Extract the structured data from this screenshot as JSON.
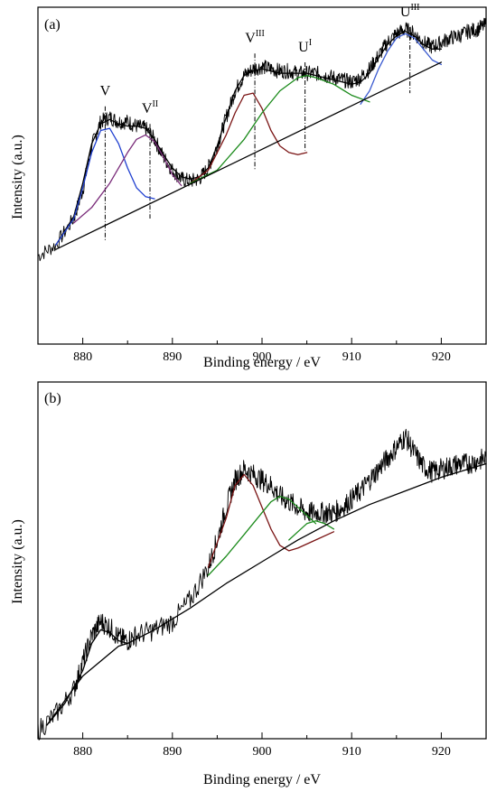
{
  "chart_data": [
    {
      "type": "line",
      "panel_label": "(a)",
      "xlabel": "Binding energy / eV",
      "ylabel": "Intensity (a.u.)",
      "xlim": [
        875,
        925
      ],
      "xticks": [
        880,
        890,
        900,
        910,
        920
      ],
      "y_tick_labels": false,
      "peak_labels": [
        {
          "base": "V",
          "sup": "",
          "x": 882.5
        },
        {
          "base": "V",
          "sup": "II",
          "x": 887.5
        },
        {
          "base": "V",
          "sup": "III",
          "x": 899.2
        },
        {
          "base": "U",
          "sup": "I",
          "x": 904.8
        },
        {
          "base": "U",
          "sup": "III",
          "x": 916.5
        }
      ],
      "series": [
        {
          "role": "experimental",
          "color": "#000000",
          "x": [
            875,
            877,
            879,
            880,
            881,
            882,
            883,
            884,
            885,
            886,
            887,
            888,
            889,
            890,
            891,
            892,
            893,
            894,
            895,
            896,
            897,
            898,
            899,
            900,
            901,
            902,
            903,
            904,
            905,
            906,
            907,
            908,
            909,
            910,
            911,
            912,
            913,
            914,
            915,
            916,
            917,
            918,
            919,
            920,
            921,
            922,
            923,
            924,
            925
          ],
          "y": [
            0.05,
            0.1,
            0.22,
            0.35,
            0.55,
            0.66,
            0.68,
            0.66,
            0.66,
            0.64,
            0.63,
            0.58,
            0.5,
            0.44,
            0.4,
            0.39,
            0.4,
            0.45,
            0.55,
            0.68,
            0.8,
            0.87,
            0.9,
            0.91,
            0.9,
            0.89,
            0.89,
            0.88,
            0.88,
            0.88,
            0.87,
            0.86,
            0.85,
            0.84,
            0.86,
            0.9,
            0.96,
            1.02,
            1.06,
            1.08,
            1.06,
            1.02,
            1.0,
            1.02,
            1.04,
            1.05,
            1.07,
            1.08,
            1.1
          ]
        },
        {
          "role": "fit-envelope",
          "color": "#000000",
          "x": [
            877,
            879,
            880,
            881,
            882,
            883,
            884,
            885,
            886,
            887,
            888,
            889,
            890,
            891,
            892,
            893,
            894,
            895,
            896,
            897,
            898,
            899,
            900,
            901,
            902,
            903,
            904,
            905,
            906,
            907,
            908,
            909,
            910,
            911,
            912,
            913,
            914,
            915,
            916,
            917,
            918,
            919,
            920
          ],
          "y": [
            0.1,
            0.23,
            0.38,
            0.56,
            0.65,
            0.67,
            0.65,
            0.64,
            0.64,
            0.63,
            0.58,
            0.51,
            0.45,
            0.41,
            0.4,
            0.41,
            0.45,
            0.55,
            0.68,
            0.8,
            0.87,
            0.89,
            0.9,
            0.89,
            0.88,
            0.88,
            0.88,
            0.88,
            0.87,
            0.86,
            0.85,
            0.84,
            0.83,
            0.84,
            0.88,
            0.95,
            1.01,
            1.05,
            1.07,
            1.05,
            1.01,
            0.99,
            0.99
          ]
        },
        {
          "role": "component V",
          "color": "#1f3fd0",
          "x": [
            877,
            879,
            880,
            881,
            882,
            883,
            884,
            885,
            886,
            887,
            888
          ],
          "y": [
            0.1,
            0.22,
            0.36,
            0.52,
            0.62,
            0.63,
            0.56,
            0.45,
            0.36,
            0.32,
            0.31
          ]
        },
        {
          "role": "component V-II",
          "color": "#7a2c7a",
          "x": [
            879,
            881,
            883,
            885,
            886,
            887,
            888,
            889,
            890,
            891
          ],
          "y": [
            0.2,
            0.27,
            0.38,
            0.52,
            0.58,
            0.6,
            0.57,
            0.5,
            0.42,
            0.37
          ]
        },
        {
          "role": "component V-III",
          "color": "#7a1414",
          "x": [
            892,
            894,
            896,
            897,
            898,
            899,
            900,
            901,
            902,
            903,
            904,
            905
          ],
          "y": [
            0.38,
            0.44,
            0.6,
            0.7,
            0.78,
            0.79,
            0.72,
            0.62,
            0.55,
            0.52,
            0.51,
            0.52
          ]
        },
        {
          "role": "component U-I",
          "color": "#1a8a1a",
          "x": [
            892,
            895,
            898,
            900,
            902,
            904,
            905,
            906,
            908,
            910,
            912
          ],
          "y": [
            0.38,
            0.44,
            0.58,
            0.7,
            0.8,
            0.86,
            0.87,
            0.86,
            0.83,
            0.78,
            0.75
          ]
        },
        {
          "role": "component U-III",
          "color": "#3a5ad0",
          "x": [
            911,
            912,
            913,
            914,
            915,
            916,
            917,
            918,
            919,
            920
          ],
          "y": [
            0.74,
            0.8,
            0.9,
            0.98,
            1.04,
            1.06,
            1.04,
            0.99,
            0.94,
            0.92
          ]
        },
        {
          "role": "baseline",
          "color": "#000000",
          "x": [
            877,
            920
          ],
          "y": [
            0.08,
            0.93
          ]
        }
      ]
    },
    {
      "type": "line",
      "panel_label": "(b)",
      "xlabel": "Binding energy / eV",
      "ylabel": "Intensity (a.u.)",
      "xlim": [
        875,
        925
      ],
      "xticks": [
        880,
        890,
        900,
        910,
        920
      ],
      "y_tick_labels": false,
      "series": [
        {
          "role": "experimental",
          "color": "#000000",
          "x": [
            875,
            877,
            879,
            880,
            881,
            882,
            883,
            884,
            885,
            886,
            888,
            890,
            892,
            894,
            895,
            896,
            897,
            898,
            899,
            900,
            901,
            902,
            903,
            904,
            905,
            906,
            907,
            908,
            909,
            910,
            911,
            912,
            913,
            914,
            915,
            916,
            917,
            918,
            919,
            920,
            921,
            922,
            923,
            924,
            925
          ],
          "y": [
            0.0,
            0.06,
            0.15,
            0.25,
            0.35,
            0.4,
            0.38,
            0.34,
            0.33,
            0.35,
            0.37,
            0.4,
            0.48,
            0.6,
            0.7,
            0.82,
            0.92,
            0.96,
            0.94,
            0.92,
            0.9,
            0.86,
            0.84,
            0.82,
            0.8,
            0.8,
            0.8,
            0.8,
            0.82,
            0.85,
            0.88,
            0.92,
            0.96,
            1.0,
            1.04,
            1.08,
            1.02,
            0.97,
            0.95,
            0.96,
            0.97,
            0.98,
            0.98,
            0.99,
            1.0
          ]
        },
        {
          "role": "fit-envelope",
          "color": "#000000",
          "x": [
            876,
            878,
            880,
            881,
            882,
            883,
            884,
            885
          ],
          "y": [
            0.02,
            0.1,
            0.22,
            0.32,
            0.37,
            0.36,
            0.33,
            0.32
          ]
        },
        {
          "role": "component 1",
          "color": "#7a1414",
          "x": [
            894,
            896,
            897,
            898,
            899,
            900,
            901,
            902,
            903,
            904,
            906,
            908
          ],
          "y": [
            0.6,
            0.78,
            0.9,
            0.94,
            0.9,
            0.82,
            0.74,
            0.68,
            0.66,
            0.67,
            0.7,
            0.73
          ]
        },
        {
          "role": "component 2",
          "color": "#1a8a1a",
          "x": [
            894,
            896,
            898,
            900,
            901,
            902,
            903,
            904,
            905,
            906
          ],
          "y": [
            0.57,
            0.64,
            0.72,
            0.8,
            0.84,
            0.86,
            0.85,
            0.82,
            0.79,
            0.76
          ]
        },
        {
          "role": "component 3",
          "color": "#1a8a1a",
          "x": [
            903,
            904,
            905,
            906,
            907,
            908
          ],
          "y": [
            0.7,
            0.73,
            0.76,
            0.77,
            0.76,
            0.74
          ]
        },
        {
          "role": "baseline",
          "color": "#000000",
          "x": [
            876,
            880,
            884,
            885,
            888,
            892,
            896,
            900,
            904,
            908,
            912,
            916,
            920,
            925
          ],
          "y": [
            0.02,
            0.2,
            0.31,
            0.32,
            0.37,
            0.45,
            0.54,
            0.62,
            0.7,
            0.77,
            0.83,
            0.88,
            0.93,
            0.98
          ]
        }
      ]
    }
  ]
}
